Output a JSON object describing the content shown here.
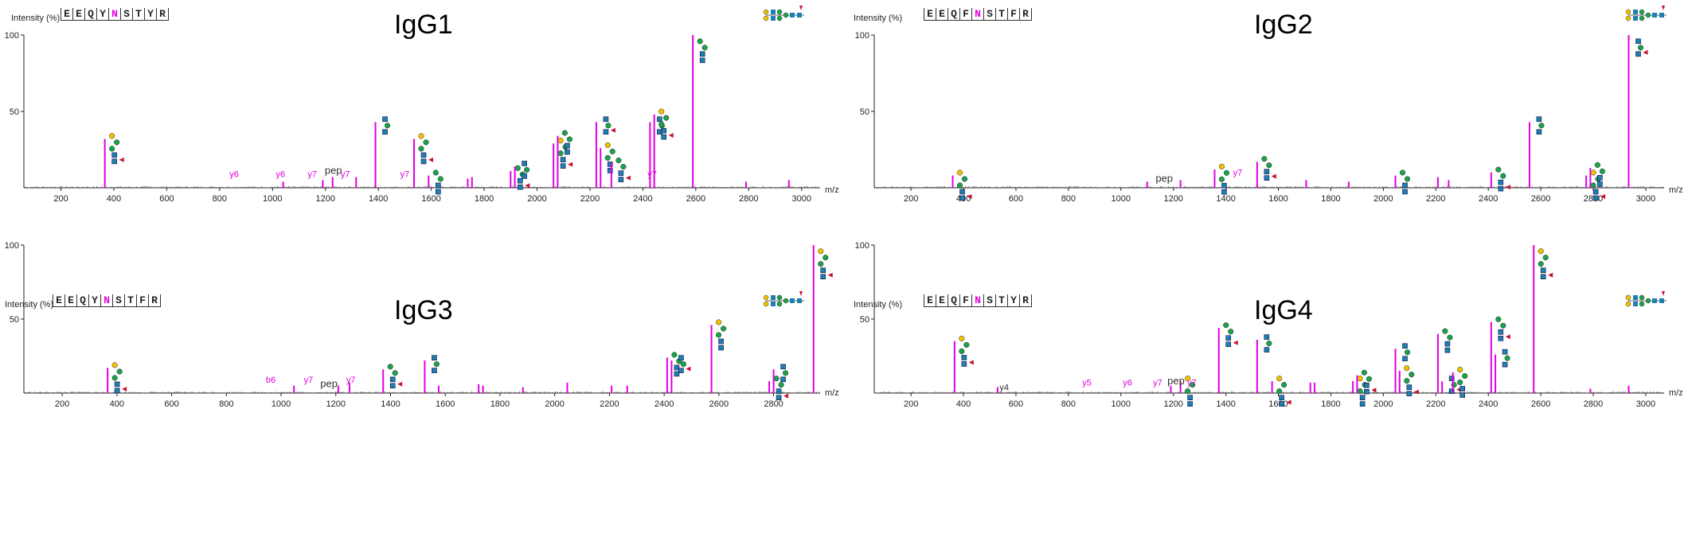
{
  "chart_data": [
    {
      "type": "bar",
      "title": "IgG1",
      "sequence": [
        "E",
        "E",
        "Q",
        "Y",
        "N",
        "S",
        "T",
        "Y",
        "R"
      ],
      "glyco_index": 4,
      "ylabel": "Intensity (%)",
      "xlabel": "m/z",
      "xlim": [
        60,
        3070
      ],
      "ylim": [
        0,
        100
      ],
      "xticks": [
        200,
        400,
        600,
        800,
        1000,
        1200,
        1400,
        1600,
        1800,
        2000,
        2200,
        2400,
        2600,
        2800,
        3000
      ],
      "yticks": [
        50,
        100
      ],
      "peaks": [
        {
          "mz": 366,
          "int": 32
        },
        {
          "mz": 1040,
          "int": 4
        },
        {
          "mz": 1190,
          "int": 5
        },
        {
          "mz": 1227,
          "int": 7
        },
        {
          "mz": 1316,
          "int": 7
        },
        {
          "mz": 1389,
          "int": 43
        },
        {
          "mz": 1535,
          "int": 32
        },
        {
          "mz": 1590,
          "int": 8
        },
        {
          "mz": 1738,
          "int": 6
        },
        {
          "mz": 1754,
          "int": 7
        },
        {
          "mz": 1900,
          "int": 11
        },
        {
          "mz": 1916,
          "int": 14
        },
        {
          "mz": 2062,
          "int": 29
        },
        {
          "mz": 2078,
          "int": 34
        },
        {
          "mz": 2224,
          "int": 43
        },
        {
          "mz": 2240,
          "int": 26
        },
        {
          "mz": 2281,
          "int": 16
        },
        {
          "mz": 2427,
          "int": 43
        },
        {
          "mz": 2443,
          "int": 48
        },
        {
          "mz": 2589,
          "int": 100
        },
        {
          "mz": 2790,
          "int": 4
        },
        {
          "mz": 2952,
          "int": 5
        }
      ],
      "annotations": [
        {
          "text": "y6",
          "mz": 855,
          "y": 7,
          "color": "#e000e0"
        },
        {
          "text": "y6",
          "mz": 1030,
          "y": 7,
          "color": "#e000e0"
        },
        {
          "text": "y7",
          "mz": 1150,
          "y": 7,
          "color": "#e000e0"
        },
        {
          "text": "pep",
          "mz": 1230,
          "y": 9,
          "color": "#333333"
        },
        {
          "text": "y7",
          "mz": 1275,
          "y": 7,
          "color": "#e000e0"
        },
        {
          "text": "y7",
          "mz": 1500,
          "y": 7,
          "color": "#e000e0"
        },
        {
          "text": "y7",
          "mz": 2435,
          "y": 7,
          "color": "#e000e0"
        }
      ]
    },
    {
      "type": "bar",
      "title": "IgG2",
      "sequence": [
        "E",
        "E",
        "Q",
        "F",
        "N",
        "S",
        "T",
        "F",
        "R"
      ],
      "glyco_index": 4,
      "ylabel": "Intensity (%)",
      "xlabel": "m/z",
      "xlim": [
        60,
        3070
      ],
      "ylim": [
        0,
        100
      ],
      "xticks": [
        200,
        400,
        600,
        800,
        1000,
        1200,
        1400,
        1600,
        1800,
        2000,
        2200,
        2400,
        2600,
        2800,
        3000
      ],
      "yticks": [
        50,
        100
      ],
      "peaks": [
        {
          "mz": 359,
          "int": 8
        },
        {
          "mz": 1100,
          "int": 4
        },
        {
          "mz": 1227,
          "int": 5
        },
        {
          "mz": 1357,
          "int": 12
        },
        {
          "mz": 1519,
          "int": 17
        },
        {
          "mz": 1706,
          "int": 5
        },
        {
          "mz": 1868,
          "int": 4
        },
        {
          "mz": 2046,
          "int": 8
        },
        {
          "mz": 2208,
          "int": 7
        },
        {
          "mz": 2249,
          "int": 5
        },
        {
          "mz": 2411,
          "int": 10
        },
        {
          "mz": 2557,
          "int": 43
        },
        {
          "mz": 2773,
          "int": 8
        },
        {
          "mz": 2789,
          "int": 13
        },
        {
          "mz": 2935,
          "int": 100
        }
      ],
      "annotations": [
        {
          "text": "pep",
          "mz": 1165,
          "y": 4,
          "color": "#333333"
        },
        {
          "text": "y7",
          "mz": 1445,
          "y": 8,
          "color": "#e000e0"
        }
      ]
    },
    {
      "type": "bar",
      "title": "IgG3",
      "sequence": [
        "E",
        "E",
        "Q",
        "Y",
        "N",
        "S",
        "T",
        "F",
        "R"
      ],
      "glyco_index": 4,
      "ylabel": "Intensity (%)",
      "xlabel": "m/z",
      "xlim": [
        60,
        2970
      ],
      "ylim": [
        0,
        100
      ],
      "xticks": [
        200,
        400,
        600,
        800,
        1000,
        1200,
        1400,
        1600,
        1800,
        2000,
        2200,
        2400,
        2600,
        2800
      ],
      "yticks": [
        50,
        100
      ],
      "peaks": [
        {
          "mz": 366,
          "int": 17
        },
        {
          "mz": 1047,
          "int": 5
        },
        {
          "mz": 1209,
          "int": 5
        },
        {
          "mz": 1250,
          "int": 7
        },
        {
          "mz": 1373,
          "int": 16
        },
        {
          "mz": 1525,
          "int": 22
        },
        {
          "mz": 1576,
          "int": 5
        },
        {
          "mz": 1722,
          "int": 6
        },
        {
          "mz": 1738,
          "int": 5
        },
        {
          "mz": 1884,
          "int": 4
        },
        {
          "mz": 2046,
          "int": 7
        },
        {
          "mz": 2208,
          "int": 5
        },
        {
          "mz": 2265,
          "int": 5
        },
        {
          "mz": 2411,
          "int": 24
        },
        {
          "mz": 2427,
          "int": 22
        },
        {
          "mz": 2573,
          "int": 46
        },
        {
          "mz": 2784,
          "int": 8
        },
        {
          "mz": 2800,
          "int": 16
        },
        {
          "mz": 2946,
          "int": 100
        }
      ],
      "annotations": [
        {
          "text": "b6",
          "mz": 962,
          "y": 7,
          "color": "#e000e0"
        },
        {
          "text": "y7",
          "mz": 1100,
          "y": 7,
          "color": "#e000e0"
        },
        {
          "text": "pep",
          "mz": 1175,
          "y": 4,
          "color": "#333333"
        },
        {
          "text": "y7",
          "mz": 1255,
          "y": 7,
          "color": "#e000e0"
        }
      ]
    },
    {
      "type": "bar",
      "title": "IgG4",
      "sequence": [
        "E",
        "E",
        "Q",
        "F",
        "N",
        "S",
        "T",
        "Y",
        "R"
      ],
      "glyco_index": 4,
      "ylabel": "Intensity (%)",
      "xlabel": "m/z",
      "xlim": [
        60,
        3070
      ],
      "ylim": [
        0,
        100
      ],
      "xticks": [
        200,
        400,
        600,
        800,
        1000,
        1200,
        1400,
        1600,
        1800,
        2000,
        2200,
        2400,
        2600,
        2800,
        3000
      ],
      "yticks": [
        50,
        100
      ],
      "peaks": [
        {
          "mz": 366,
          "int": 35
        },
        {
          "mz": 530,
          "int": 4
        },
        {
          "mz": 1190,
          "int": 5
        },
        {
          "mz": 1227,
          "int": 8
        },
        {
          "mz": 1373,
          "int": 44
        },
        {
          "mz": 1519,
          "int": 36
        },
        {
          "mz": 1576,
          "int": 8
        },
        {
          "mz": 1722,
          "int": 7
        },
        {
          "mz": 1738,
          "int": 7
        },
        {
          "mz": 1884,
          "int": 8
        },
        {
          "mz": 1900,
          "int": 12
        },
        {
          "mz": 2046,
          "int": 30
        },
        {
          "mz": 2062,
          "int": 15
        },
        {
          "mz": 2208,
          "int": 40
        },
        {
          "mz": 2224,
          "int": 8
        },
        {
          "mz": 2265,
          "int": 14
        },
        {
          "mz": 2411,
          "int": 48
        },
        {
          "mz": 2427,
          "int": 26
        },
        {
          "mz": 2573,
          "int": 100
        },
        {
          "mz": 2789,
          "int": 3
        },
        {
          "mz": 2935,
          "int": 5
        }
      ],
      "annotations": [
        {
          "text": "y4",
          "mz": 555,
          "y": 2,
          "color": "#333333"
        },
        {
          "text": "y5",
          "mz": 870,
          "y": 5,
          "color": "#e000e0"
        },
        {
          "text": "y6",
          "mz": 1025,
          "y": 5,
          "color": "#e000e0"
        },
        {
          "text": "y7",
          "mz": 1140,
          "y": 5,
          "color": "#e000e0"
        },
        {
          "text": "pep",
          "mz": 1210,
          "y": 6,
          "color": "#333333"
        },
        {
          "text": "y7",
          "mz": 1270,
          "y": 5,
          "color": "#e000e0"
        }
      ]
    }
  ],
  "colors": {
    "peak": "#e000e0",
    "noise": "#444444",
    "glcnac": "#1f7fb0",
    "mannose": "#1aa34a",
    "galactose": "#f2c200",
    "fucose": "#c8102e"
  },
  "icons": {
    "glycan": "glycan-cartoon-icon",
    "legend": "glycan-structure-icon"
  }
}
